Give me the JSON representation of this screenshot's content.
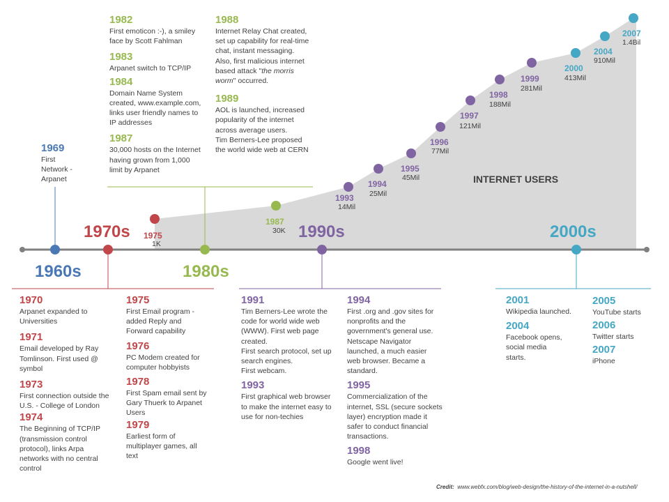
{
  "colors": {
    "blue": "#4a78b5",
    "red": "#c0464a",
    "green": "#97b94f",
    "purple": "#8064a2",
    "teal": "#45a7c4",
    "axis": "#808080",
    "area": "#d9d9d9"
  },
  "decades": [
    "1960s",
    "1970s",
    "1980s",
    "1990s",
    "2000s"
  ],
  "chart_data": {
    "type": "area",
    "title": "INTERNET USERS",
    "x": [
      1975,
      1987,
      1993,
      1994,
      1995,
      1996,
      1997,
      1998,
      1999,
      2000,
      2004,
      2007
    ],
    "year_labels": [
      "1975",
      "1987",
      "1993",
      "1994",
      "1995",
      "1996",
      "1997",
      "1998",
      "1999",
      "2000",
      "2004",
      "2007"
    ],
    "value_labels": [
      "1K",
      "30K",
      "14Mil",
      "25Mil",
      "45Mil",
      "77Mil",
      "121Mil",
      "188Mil",
      "281Mil",
      "413Mil",
      "910Mil",
      "1.4Bil"
    ],
    "values": [
      0.001,
      0.03,
      14,
      25,
      45,
      77,
      121,
      188,
      281,
      413,
      910,
      1400
    ],
    "units": "users (millions)"
  },
  "events": {
    "e1969": {
      "year": "1969",
      "text": "First\nNetwork -\nArpanet"
    },
    "e1970": {
      "year": "1970",
      "text": "Arpanet expanded to\nUniversities"
    },
    "e1971": {
      "year": "1971",
      "text": "Email developed by Ray\nTomlinson. First used @\nsymbol"
    },
    "e1973": {
      "year": "1973",
      "text": "First connection outside the\nU.S. - College of London"
    },
    "e1974": {
      "year": "1974",
      "text": "The Beginning of TCP/IP\n(transmission control\nprotocol), links Arpa\nnetworks with no central\ncontrol"
    },
    "e1975": {
      "year": "1975",
      "text": "First Email program -\nadded Reply and\nForward capability"
    },
    "e1976": {
      "year": "1976",
      "text": "PC Modem created for\ncomputer hobbyists"
    },
    "e1978": {
      "year": "1978",
      "text": "First Spam email sent by\nGary Thuerk to Arpanet\nUsers"
    },
    "e1979": {
      "year": "1979",
      "text": "Earliest form of\nmultiplayer games, all\ntext"
    },
    "e1982": {
      "year": "1982",
      "text": "First emoticon :-), a smiley\nface by Scott Fahlman"
    },
    "e1983": {
      "year": "1983",
      "text": "Arpanet switch to TCP/IP"
    },
    "e1984": {
      "year": "1984",
      "text": "Domain Name System\ncreated, www.example.com,\nlinks user friendly names to\nIP addresses"
    },
    "e1987": {
      "year": "1987",
      "text": "30,000 hosts on the Internet\nhaving grown from 1,000\nlimit by Arpanet"
    },
    "e1988": {
      "year": "1988",
      "text_a": "Internet Relay Chat created,\nset up capability for real-time\nchat, instant messaging.\nAlso, first malicious internet\nbased attack \"",
      "text_em": "the morris\nworm",
      "text_b": "\" occurred."
    },
    "e1989": {
      "year": "1989",
      "text": "AOL is launched, increased\npopularity of the internet\nacross average users.\nTim Berners-Lee proposed\nthe world wide web at CERN"
    },
    "e1991": {
      "year": "1991",
      "text": "Tim Berners-Lee wrote the\ncode for world wide web\n(WWW).  First web page\ncreated.\nFirst search protocol, set up\nsearch engines.\nFirst webcam."
    },
    "e1993": {
      "year": "1993",
      "text": "First graphical web browser\nto make the internet easy to\nuse for non-techies"
    },
    "e1994": {
      "year": "1994",
      "text": "First .org and .gov sites for\nnonprofits and the\ngovernment's general use.\nNetscape Navigator\nlaunched, a much easier\nweb browser.  Became a\nstandard."
    },
    "e1995": {
      "year": "1995",
      "text": "Commercialization of the\ninternet, SSL (secure sockets\nlayer) encryption made it\nsafer to conduct financial\ntransactions."
    },
    "e1998": {
      "year": "1998",
      "text": "Google went live!"
    },
    "e2001": {
      "year": "2001",
      "text": "Wikipedia launched."
    },
    "e2004": {
      "year": "2004",
      "text": "Facebook opens,\nsocial media\nstarts."
    },
    "e2005": {
      "year": "2005",
      "text": "YouTube starts"
    },
    "e2006": {
      "year": "2006",
      "text": "Twitter starts"
    },
    "e2007": {
      "year": "2007",
      "text": "iPhone"
    }
  },
  "credit": {
    "label": "Credit:",
    "url": "www.webfx.com/blog/web-design/the-history-of-the-internet-in-a-nutshell/"
  }
}
